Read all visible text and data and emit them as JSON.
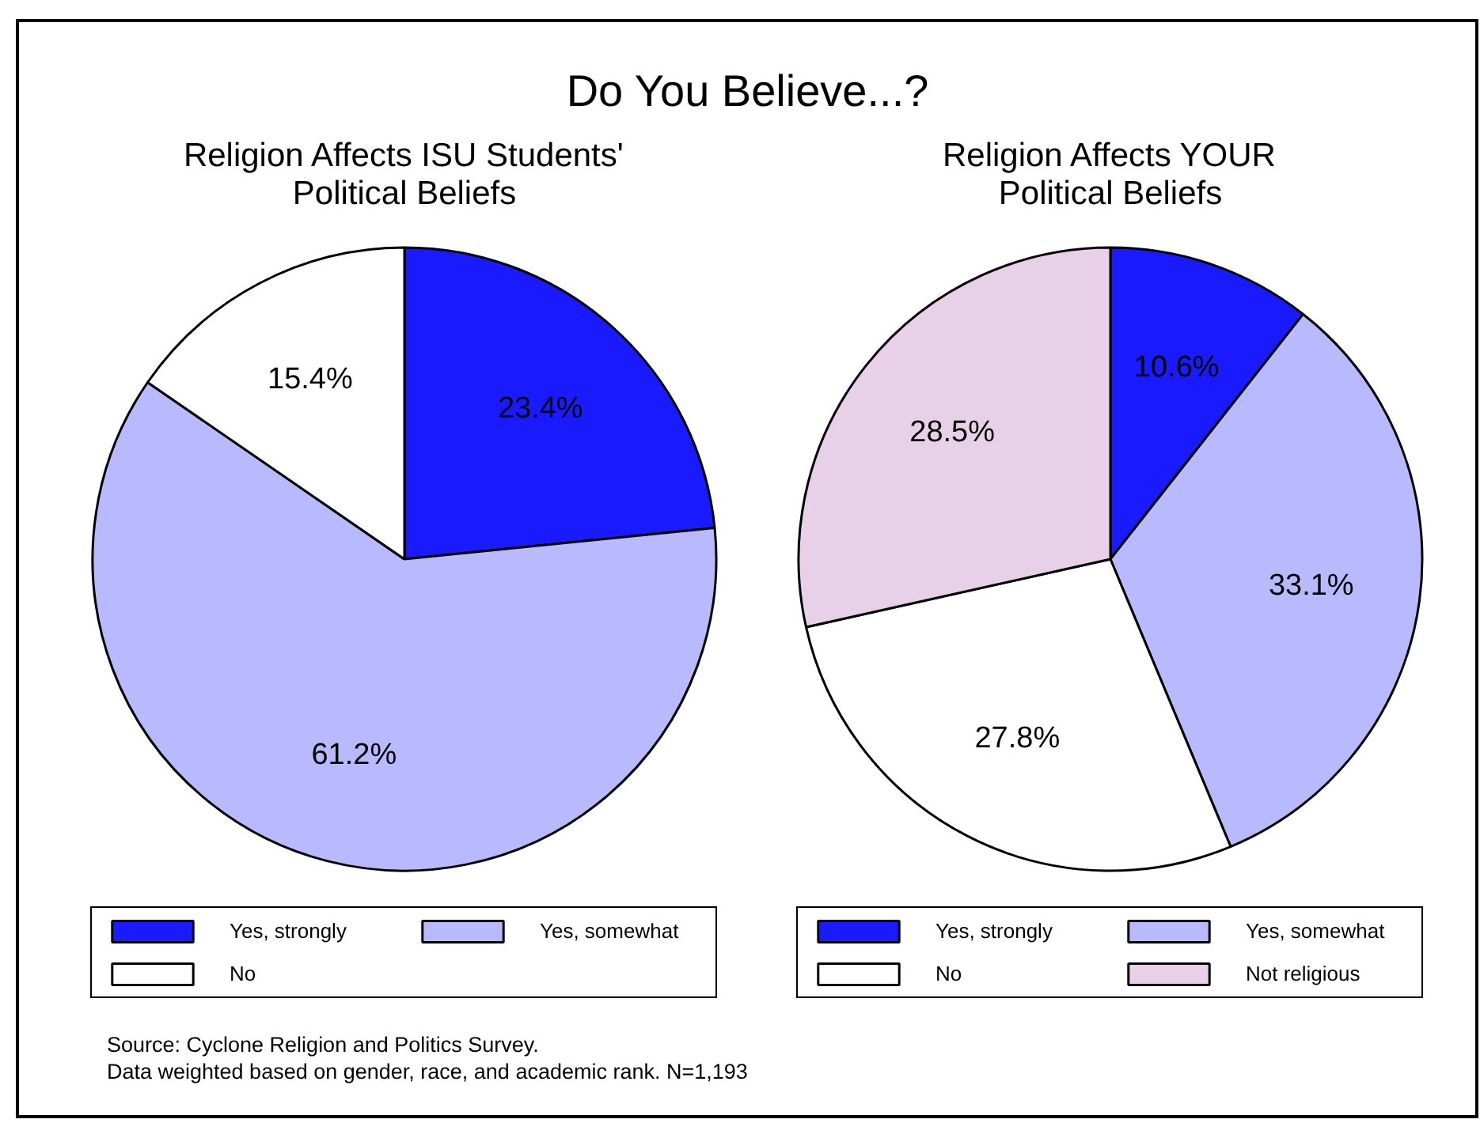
{
  "chart_data": [
    {
      "type": "other",
      "title": "Do You Believe...?"
    },
    {
      "type": "pie",
      "title": "Religion Affects ISU Students' Political Beliefs",
      "categories": [
        "Yes, strongly",
        "Yes, somewhat",
        "No"
      ],
      "values": [
        23.4,
        61.2,
        15.4
      ],
      "colors": [
        "#1a1aff",
        "#b9b9ff",
        "#ffffff"
      ],
      "value_labels": [
        "23.4%",
        "61.2%",
        "15.4%"
      ],
      "legend": "bottom"
    },
    {
      "type": "pie",
      "title": "Religion Affects YOUR Political Beliefs",
      "categories": [
        "Yes, strongly",
        "Yes, somewhat",
        "No",
        "Not religious"
      ],
      "values": [
        10.6,
        33.1,
        27.8,
        28.5
      ],
      "colors": [
        "#1a1aff",
        "#b9b9ff",
        "#ffffff",
        "#e8d0e8"
      ],
      "value_labels": [
        "10.6%",
        "33.1%",
        "27.8%",
        "28.5%"
      ],
      "legend": "bottom"
    },
    {
      "type": "other",
      "annotations": [
        "Source: Cyclone Religion and Politics Survey.",
        "Data weighted based on gender, race, and academic rank. N=1,193"
      ]
    }
  ]
}
